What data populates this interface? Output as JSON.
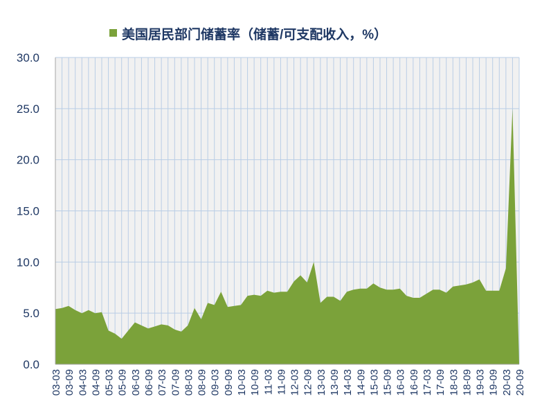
{
  "chart_data": {
    "type": "area",
    "title": "",
    "xlabel": "",
    "ylabel": "",
    "legend": {
      "position": "top-center"
    },
    "grid": true,
    "ylim": [
      0,
      30
    ],
    "yticks": [
      "0.0",
      "5.0",
      "10.0",
      "15.0",
      "20.0",
      "25.0",
      "30.0"
    ],
    "xticks": [
      "03-03",
      "03-09",
      "04-03",
      "04-09",
      "05-03",
      "05-09",
      "06-03",
      "06-09",
      "07-03",
      "07-09",
      "08-03",
      "08-09",
      "09-03",
      "09-09",
      "10-03",
      "10-09",
      "11-03",
      "11-09",
      "12-03",
      "12-09",
      "13-03",
      "13-09",
      "14-03",
      "14-09",
      "15-03",
      "15-09",
      "16-03",
      "16-09",
      "17-03",
      "17-09",
      "18-03",
      "18-09",
      "19-03",
      "19-09",
      "20-03",
      "20-09"
    ],
    "series": [
      {
        "name": "美国居民部门储蓄率（储蓄/可支配收入，%）",
        "color": "#7ba23a",
        "points": [
          [
            "03-03",
            5.4
          ],
          [
            "03-06",
            5.5
          ],
          [
            "03-09",
            5.7
          ],
          [
            "03-12",
            5.3
          ],
          [
            "04-03",
            5.0
          ],
          [
            "04-06",
            5.3
          ],
          [
            "04-09",
            5.0
          ],
          [
            "04-12",
            5.1
          ],
          [
            "05-03",
            3.3
          ],
          [
            "05-06",
            3.0
          ],
          [
            "05-09",
            2.5
          ],
          [
            "05-12",
            3.3
          ],
          [
            "06-03",
            4.1
          ],
          [
            "06-06",
            3.8
          ],
          [
            "06-09",
            3.5
          ],
          [
            "06-12",
            3.7
          ],
          [
            "07-03",
            3.9
          ],
          [
            "07-06",
            3.8
          ],
          [
            "07-09",
            3.4
          ],
          [
            "07-12",
            3.2
          ],
          [
            "08-03",
            3.8
          ],
          [
            "08-06",
            5.5
          ],
          [
            "08-09",
            4.4
          ],
          [
            "08-12",
            6.0
          ],
          [
            "09-03",
            5.8
          ],
          [
            "09-06",
            7.1
          ],
          [
            "09-09",
            5.6
          ],
          [
            "09-12",
            5.7
          ],
          [
            "10-03",
            5.8
          ],
          [
            "10-06",
            6.7
          ],
          [
            "10-09",
            6.8
          ],
          [
            "10-12",
            6.7
          ],
          [
            "11-03",
            7.2
          ],
          [
            "11-06",
            7.0
          ],
          [
            "11-09",
            7.1
          ],
          [
            "11-12",
            7.1
          ],
          [
            "12-03",
            8.1
          ],
          [
            "12-06",
            8.7
          ],
          [
            "12-09",
            8.0
          ],
          [
            "12-12",
            10.0
          ],
          [
            "13-03",
            6.0
          ],
          [
            "13-06",
            6.6
          ],
          [
            "13-09",
            6.6
          ],
          [
            "13-12",
            6.2
          ],
          [
            "14-03",
            7.1
          ],
          [
            "14-06",
            7.3
          ],
          [
            "14-09",
            7.4
          ],
          [
            "14-12",
            7.4
          ],
          [
            "15-03",
            7.9
          ],
          [
            "15-06",
            7.5
          ],
          [
            "15-09",
            7.3
          ],
          [
            "15-12",
            7.3
          ],
          [
            "16-03",
            7.4
          ],
          [
            "16-06",
            6.7
          ],
          [
            "16-09",
            6.5
          ],
          [
            "16-12",
            6.5
          ],
          [
            "17-03",
            6.9
          ],
          [
            "17-06",
            7.3
          ],
          [
            "17-09",
            7.3
          ],
          [
            "17-12",
            7.0
          ],
          [
            "18-03",
            7.6
          ],
          [
            "18-06",
            7.7
          ],
          [
            "18-09",
            7.8
          ],
          [
            "18-12",
            8.0
          ],
          [
            "19-03",
            8.3
          ],
          [
            "19-06",
            7.2
          ],
          [
            "19-09",
            7.2
          ],
          [
            "19-12",
            7.2
          ],
          [
            "20-03",
            9.4
          ],
          [
            "20-06",
            25.0
          ],
          [
            "20-09",
            0.0
          ]
        ]
      }
    ]
  }
}
